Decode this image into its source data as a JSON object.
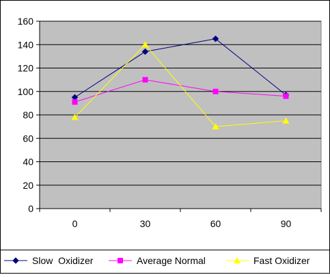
{
  "chart_data": {
    "type": "line",
    "title": "",
    "xlabel": "",
    "ylabel": "",
    "categories": [
      "0",
      "30",
      "60",
      "90"
    ],
    "ylim": [
      0,
      160
    ],
    "yticks": [
      "0",
      "20",
      "40",
      "60",
      "80",
      "100",
      "120",
      "140",
      "160"
    ],
    "grid": true,
    "plot_background": "#c0c0c0",
    "legend_position": "bottom",
    "series": [
      {
        "name": "Slow  Oxidizer",
        "values": [
          95,
          134,
          145,
          97
        ],
        "color": "#000080",
        "marker": "diamond"
      },
      {
        "name": "Average Normal",
        "values": [
          91,
          110,
          100,
          96
        ],
        "color": "#ff00ff",
        "marker": "square"
      },
      {
        "name": "Fast Oxidizer",
        "values": [
          78,
          140,
          70,
          75
        ],
        "color": "#ffff00",
        "marker": "triangle"
      }
    ]
  }
}
